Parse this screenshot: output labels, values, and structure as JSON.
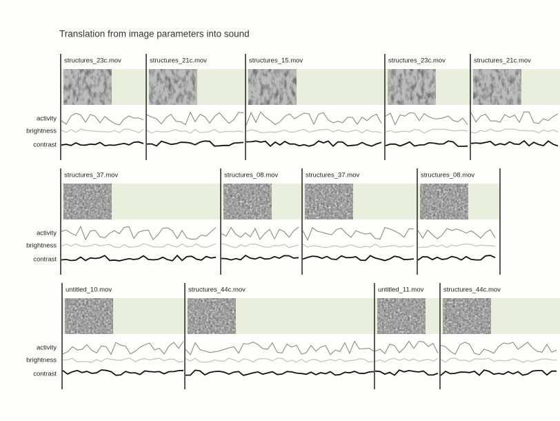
{
  "title": "Translation from image parameters into sound",
  "rows": [
    {
      "labels": [
        "activity",
        "brightness",
        "contrast"
      ],
      "clips": [
        "structures_23c.mov",
        "structures_21c.mov",
        "structures_15.mov",
        "structures_23c.mov",
        "structures_21c.mov"
      ]
    },
    {
      "labels": [
        "activity",
        "brightness",
        "contrast"
      ],
      "clips": [
        "structures_37.mov",
        "structures_08.mov",
        "structures_37.mov",
        "structures_08.mov"
      ]
    },
    {
      "labels": [
        "activity",
        "brightness",
        "contrast"
      ],
      "clips": [
        "untitled_10.mov",
        "structures_44c.mov",
        "untitled_11.mov",
        "structures_44c.mov"
      ]
    }
  ]
}
